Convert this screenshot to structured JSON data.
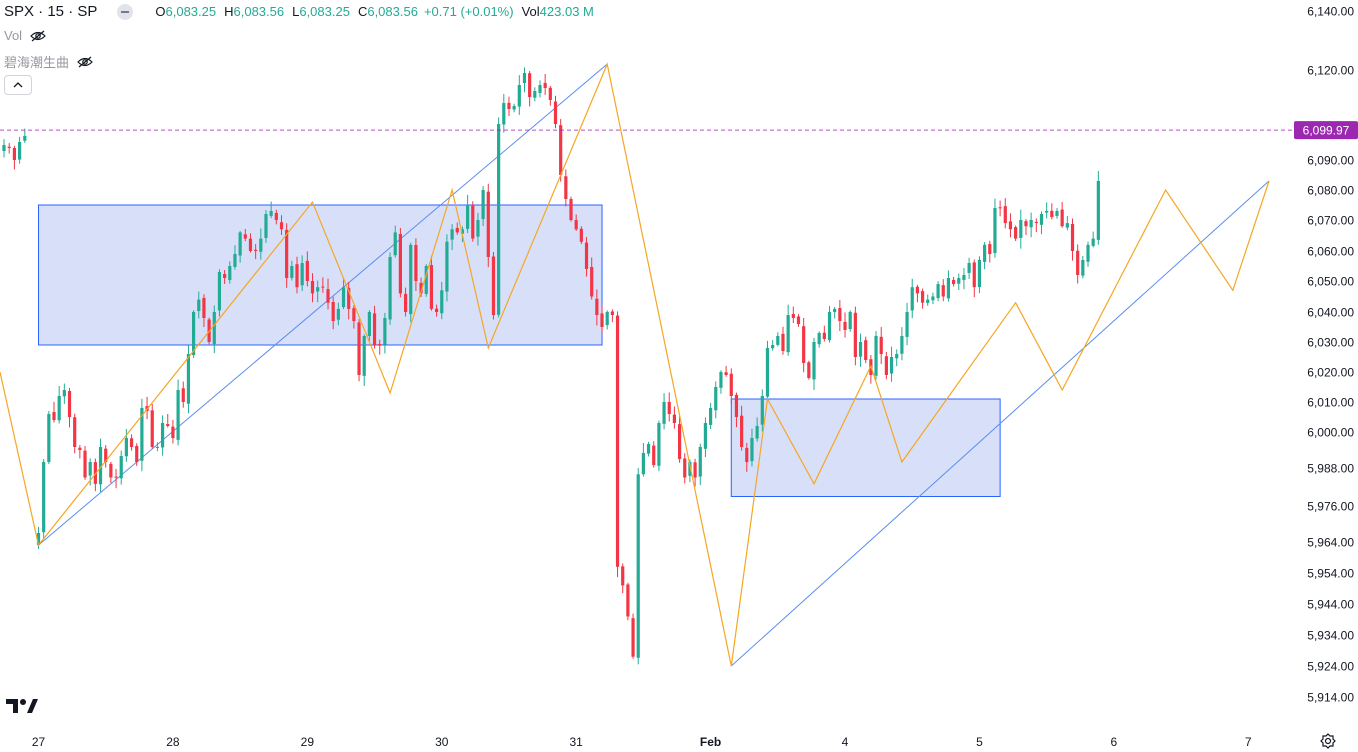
{
  "legend": {
    "symbol": "SPX · 15 · SP",
    "open_label": "O",
    "open": "6,083.25",
    "high_label": "H",
    "high": "6,083.56",
    "low_label": "L",
    "low": "6,083.25",
    "close_label": "C",
    "close": "6,083.56",
    "change": "+0.71 (+0.01%)",
    "vol_label": "Vol",
    "vol": "423.03 M"
  },
  "indicators": [
    {
      "name": "Vol"
    },
    {
      "name": "碧海潮生曲"
    }
  ],
  "icons": [
    "eye-off-icon",
    "chevron-up-icon",
    "tradingview-logo-icon",
    "settings-icon"
  ],
  "colors": {
    "up": "#22ab94",
    "down": "#f23645",
    "zigzag": "#f5a623",
    "trendline": "#5b8def",
    "box_fill": "#d6def9",
    "box_border": "#2962ff",
    "price_line": "#9c27b0",
    "price_label_bg": "#9c27b0"
  },
  "chart_data": {
    "type": "candlestick",
    "symbol": "SPX",
    "interval": "15",
    "ylim": [
      5908,
      6143
    ],
    "y_ticks": [
      "6,140.00",
      "6,120.00",
      "6,090.00",
      "6,080.00",
      "6,070.00",
      "6,060.00",
      "6,050.00",
      "6,040.00",
      "6,030.00",
      "6,020.00",
      "6,010.00",
      "6,000.00",
      "5,988.00",
      "5,976.00",
      "5,964.00",
      "5,954.00",
      "5,944.00",
      "5,934.00",
      "5,924.00",
      "5,914.00"
    ],
    "y_tick_values": [
      6140,
      6120,
      6090,
      6080,
      6070,
      6060,
      6050,
      6040,
      6030,
      6020,
      6010,
      6000,
      5988,
      5976,
      5964,
      5954,
      5944,
      5934,
      5924,
      5914
    ],
    "x_ticks": [
      "27",
      "28",
      "29",
      "30",
      "31",
      "Feb",
      "4",
      "5",
      "6",
      "7"
    ],
    "x_tick_positions": [
      0,
      26,
      52,
      78,
      104,
      130,
      156,
      182,
      208,
      234
    ],
    "current_price": "6,099.97",
    "current_price_value": 6099.97,
    "closes": [
      6095,
      6094,
      6090,
      6096,
      6098,
      5967,
      5990,
      6006,
      6004,
      6012,
      6014,
      6005,
      5995,
      5994,
      5985,
      5990,
      5983,
      5995,
      5990,
      5985,
      5985,
      5992,
      5998,
      5995,
      5990,
      6008,
      6007,
      5995,
      5995,
      6003,
      6002,
      5998,
      6014,
      6010,
      6026,
      6040,
      6044,
      6038,
      6030,
      6040,
      6053,
      6051,
      6055,
      6059,
      6066,
      6064,
      6060,
      6060,
      6064,
      6072,
      6073,
      6070,
      6067,
      6051,
      6055,
      6048,
      6056,
      6050,
      6046,
      6048,
      6048,
      6043,
      6037,
      6041,
      6048,
      6041,
      6037,
      6019,
      6032,
      6040,
      6029,
      6029,
      6038,
      6058,
      6066,
      6046,
      6040,
      6062,
      6050,
      6046,
      6055,
      6041,
      6040,
      6047,
      6063,
      6067,
      6066,
      6067,
      6075,
      6064,
      6070,
      6080,
      6058,
      6039,
      6102,
      6109,
      6107,
      6108,
      6115,
      6119,
      6111,
      6113,
      6115,
      6114,
      6110,
      6102,
      6085,
      6077,
      6070,
      6067,
      6063,
      6054,
      6045,
      6039,
      6035,
      6040,
      6039,
      5956,
      5950,
      5940,
      5927,
      5986,
      5993,
      5996,
      5989,
      6003,
      6010,
      6006,
      6003,
      5991,
      5985,
      5990,
      5985,
      5995,
      6003,
      6008,
      6015,
      6020,
      6019,
      6012,
      6005,
      5995,
      5990,
      5998,
      6002,
      6012,
      6028,
      6029,
      6032,
      6027,
      6039,
      6038,
      6036,
      6023,
      6018,
      6030,
      6033,
      6031,
      6040,
      6041,
      6037,
      6034,
      6040,
      6025,
      6030,
      6024,
      6019,
      6032,
      6026,
      6019,
      6025,
      6026,
      6032,
      6040,
      6048,
      6046,
      6043,
      6044,
      6045,
      6049,
      6045,
      6051,
      6049,
      6051,
      6052,
      6056,
      6048,
      6057,
      6062,
      6059,
      6074,
      6074,
      6069,
      6067,
      6064,
      6070,
      6068,
      6070,
      6069,
      6072,
      6073,
      6071,
      6073,
      6068,
      6069,
      6060,
      6052,
      6057,
      6062,
      6064,
      6083
    ],
    "zigzag": [
      [
        0,
        6020
      ],
      [
        7,
        5963
      ],
      [
        60,
        6076
      ],
      [
        75,
        6013
      ],
      [
        87,
        6080
      ],
      [
        94,
        6028
      ],
      [
        117,
        6122
      ],
      [
        141,
        5924
      ],
      [
        148,
        6011
      ],
      [
        157,
        5983
      ],
      [
        168,
        6022
      ],
      [
        174,
        5990
      ],
      [
        196,
        6043
      ],
      [
        205,
        6014
      ],
      [
        225,
        6080
      ],
      [
        238,
        6047
      ],
      [
        245,
        6083
      ]
    ],
    "trendlines": [
      [
        [
          7,
          5963
        ],
        [
          117,
          6122
        ]
      ],
      [
        [
          141,
          5924
        ],
        [
          245,
          6083
        ]
      ]
    ],
    "boxes": [
      {
        "x": [
          7,
          116
        ],
        "y": [
          6029,
          6075
        ]
      },
      {
        "x": [
          141,
          193
        ],
        "y": [
          5979,
          6011
        ]
      }
    ]
  }
}
